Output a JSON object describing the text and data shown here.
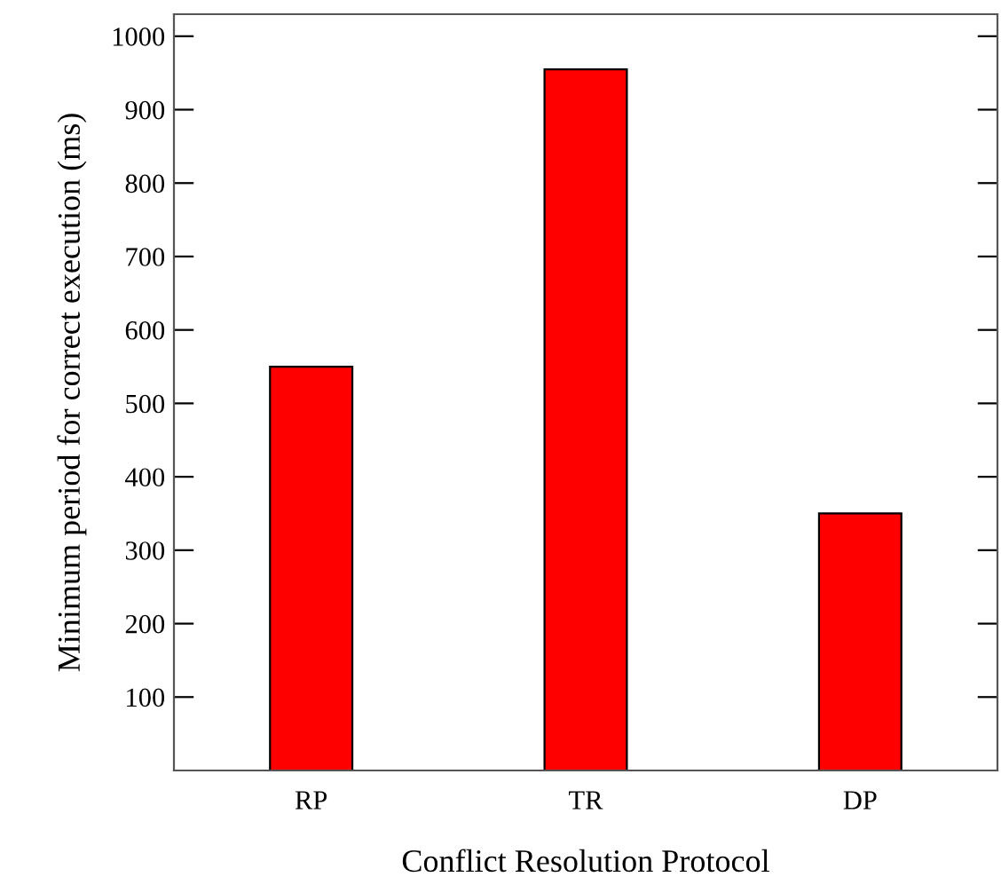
{
  "chart_data": {
    "type": "bar",
    "xlabel": "Conflict Resolution Protocol",
    "ylabel": "Minimum period for correct execution (ms)",
    "categories": [
      "RP",
      "TR",
      "DP"
    ],
    "values": [
      550,
      955,
      350
    ],
    "color": "#ff0000",
    "ylim": [
      0,
      1030
    ],
    "yticks": [
      100,
      200,
      300,
      400,
      500,
      600,
      700,
      800,
      900,
      1000
    ],
    "grid": false,
    "legend": false
  }
}
